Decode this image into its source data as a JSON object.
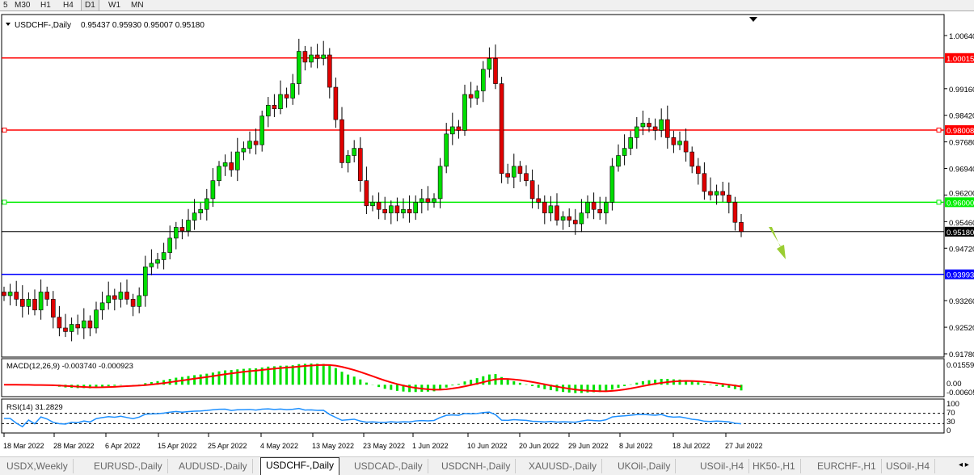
{
  "timeframes": [
    {
      "label": "5"
    },
    {
      "label": "M30"
    },
    {
      "label": "H1"
    },
    {
      "label": "H4"
    },
    {
      "label": "D1",
      "active": true
    },
    {
      "label": "W1"
    },
    {
      "label": "MN"
    }
  ],
  "chart": {
    "symbol": "USDCHF-,Daily",
    "ohlc": "0.95437 0.95930 0.95007 0.95180",
    "bull_color": "#00dd00",
    "bear_color": "#e00000"
  },
  "price_axis": {
    "ticks": [
      "1.00640",
      "0.99160",
      "0.98420",
      "0.97680",
      "0.96940",
      "0.96200",
      "0.95460",
      "0.94720",
      "0.93260",
      "0.92520",
      "0.91780"
    ],
    "range": [
      0.9178,
      1.0064
    ]
  },
  "levels": [
    {
      "price": "1.00015",
      "color": "#ff0000"
    },
    {
      "price": "0.98008",
      "color": "#ff0000"
    },
    {
      "price": "0.96000",
      "color": "#00ee00"
    },
    {
      "price": "0.95180",
      "color": "#000000"
    },
    {
      "price": "0.93993",
      "color": "#0000ff"
    }
  ],
  "closes": [
    0.934,
    0.935,
    0.933,
    0.931,
    0.933,
    0.93,
    0.935,
    0.933,
    0.928,
    0.925,
    0.924,
    0.926,
    0.925,
    0.927,
    0.925,
    0.93,
    0.932,
    0.934,
    0.933,
    0.935,
    0.933,
    0.931,
    0.934,
    0.942,
    0.943,
    0.944,
    0.946,
    0.95,
    0.953,
    0.952,
    0.955,
    0.957,
    0.958,
    0.961,
    0.966,
    0.97,
    0.971,
    0.969,
    0.974,
    0.975,
    0.977,
    0.976,
    0.984,
    0.987,
    0.986,
    0.99,
    0.989,
    0.993,
    1.002,
    0.999,
    1.001,
    1.0,
    1.001,
    0.992,
    0.983,
    0.971,
    0.973,
    0.975,
    0.966,
    0.959,
    0.96,
    0.958,
    0.957,
    0.959,
    0.957,
    0.958,
    0.957,
    0.96,
    0.961,
    0.96,
    0.961,
    0.97,
    0.979,
    0.981,
    0.98,
    0.99,
    0.989,
    0.991,
    0.997,
    1.0,
    0.993,
    0.968,
    0.967,
    0.97,
    0.968,
    0.966,
    0.961,
    0.96,
    0.957,
    0.959,
    0.955,
    0.956,
    0.955,
    0.954,
    0.957,
    0.96,
    0.958,
    0.957,
    0.96,
    0.97,
    0.973,
    0.975,
    0.978,
    0.981,
    0.982,
    0.981,
    0.98,
    0.983,
    0.978,
    0.976,
    0.977,
    0.974,
    0.97,
    0.968,
    0.963,
    0.962,
    0.963,
    0.962,
    0.96,
    0.9544,
    0.9518
  ],
  "macd": {
    "label": "MACD(12,26,9) -0.003740 -0.000923",
    "ticks": [
      "0.015596",
      "0.00",
      "-0.00605"
    ]
  },
  "rsi": {
    "label": "RSI(14) 31.2829",
    "ticks": [
      "100",
      "70",
      "30",
      "0"
    ]
  },
  "dates": [
    "18 Mar 2022",
    "28 Mar 2022",
    "6 Apr 2022",
    "15 Apr 2022",
    "25 Apr 2022",
    "4 May 2022",
    "13 May 2022",
    "23 May 2022",
    "1 Jun 2022",
    "10 Jun 2022",
    "20 Jun 2022",
    "29 Jun 2022",
    "8 Jul 2022",
    "18 Jul 2022",
    "27 Jul 2022"
  ],
  "tabs": [
    {
      "label": "USDX,Weekly"
    },
    {
      "label": "EURUSD-,Daily"
    },
    {
      "label": "AUDUSD-,Daily"
    },
    {
      "label": "USDCHF-,Daily",
      "active": true
    },
    {
      "label": "USDCAD-,Daily"
    },
    {
      "label": "USDCNH-,Daily"
    },
    {
      "label": "XAUUSD-,Daily"
    },
    {
      "label": "UKOil-,Daily"
    },
    {
      "label": "USOil-,H4"
    },
    {
      "label": "HK50-,H1"
    },
    {
      "label": "EURCHF-,H1"
    },
    {
      "label": "USOil-,H4"
    }
  ]
}
